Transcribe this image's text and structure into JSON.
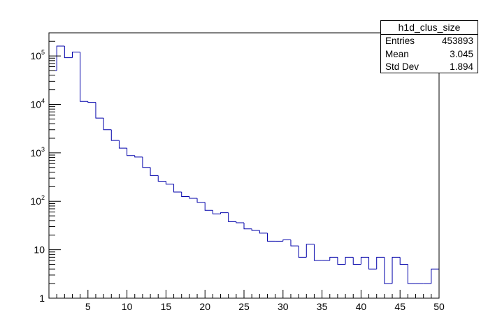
{
  "chart_data": {
    "type": "histogram",
    "title": "",
    "xlabel": "",
    "ylabel": "",
    "log_y": true,
    "xlim": [
      0,
      50
    ],
    "ylim": [
      1,
      300000
    ],
    "bin_width": 1,
    "bin_edges_start": 0,
    "x_tick_labels": [
      "5",
      "10",
      "15",
      "20",
      "25",
      "30",
      "35",
      "40",
      "45",
      "50"
    ],
    "y_tick_labels": [
      {
        "base": "1",
        "exp": ""
      },
      {
        "base": "10",
        "exp": ""
      },
      {
        "base": "10",
        "exp": "2"
      },
      {
        "base": "10",
        "exp": "3"
      },
      {
        "base": "10",
        "exp": "4"
      },
      {
        "base": "10",
        "exp": "5"
      }
    ],
    "values": [
      50000,
      160000,
      92000,
      120000,
      11500,
      11000,
      5200,
      3000,
      1800,
      1250,
      880,
      820,
      500,
      340,
      260,
      225,
      155,
      125,
      115,
      95,
      65,
      55,
      58,
      38,
      36,
      27,
      25,
      22,
      15,
      15,
      16,
      12,
      7,
      13,
      6,
      6,
      7,
      5,
      7,
      5,
      7,
      4,
      7,
      2,
      7,
      5,
      2,
      2,
      2,
      4
    ],
    "line_color": "#0000aa",
    "stats_box": {
      "name": "h1d_clus_size",
      "rows": [
        {
          "label": "Entries",
          "value": "453893"
        },
        {
          "label": "Mean",
          "value": "3.045"
        },
        {
          "label": "Std Dev",
          "value": "1.894"
        }
      ]
    }
  }
}
